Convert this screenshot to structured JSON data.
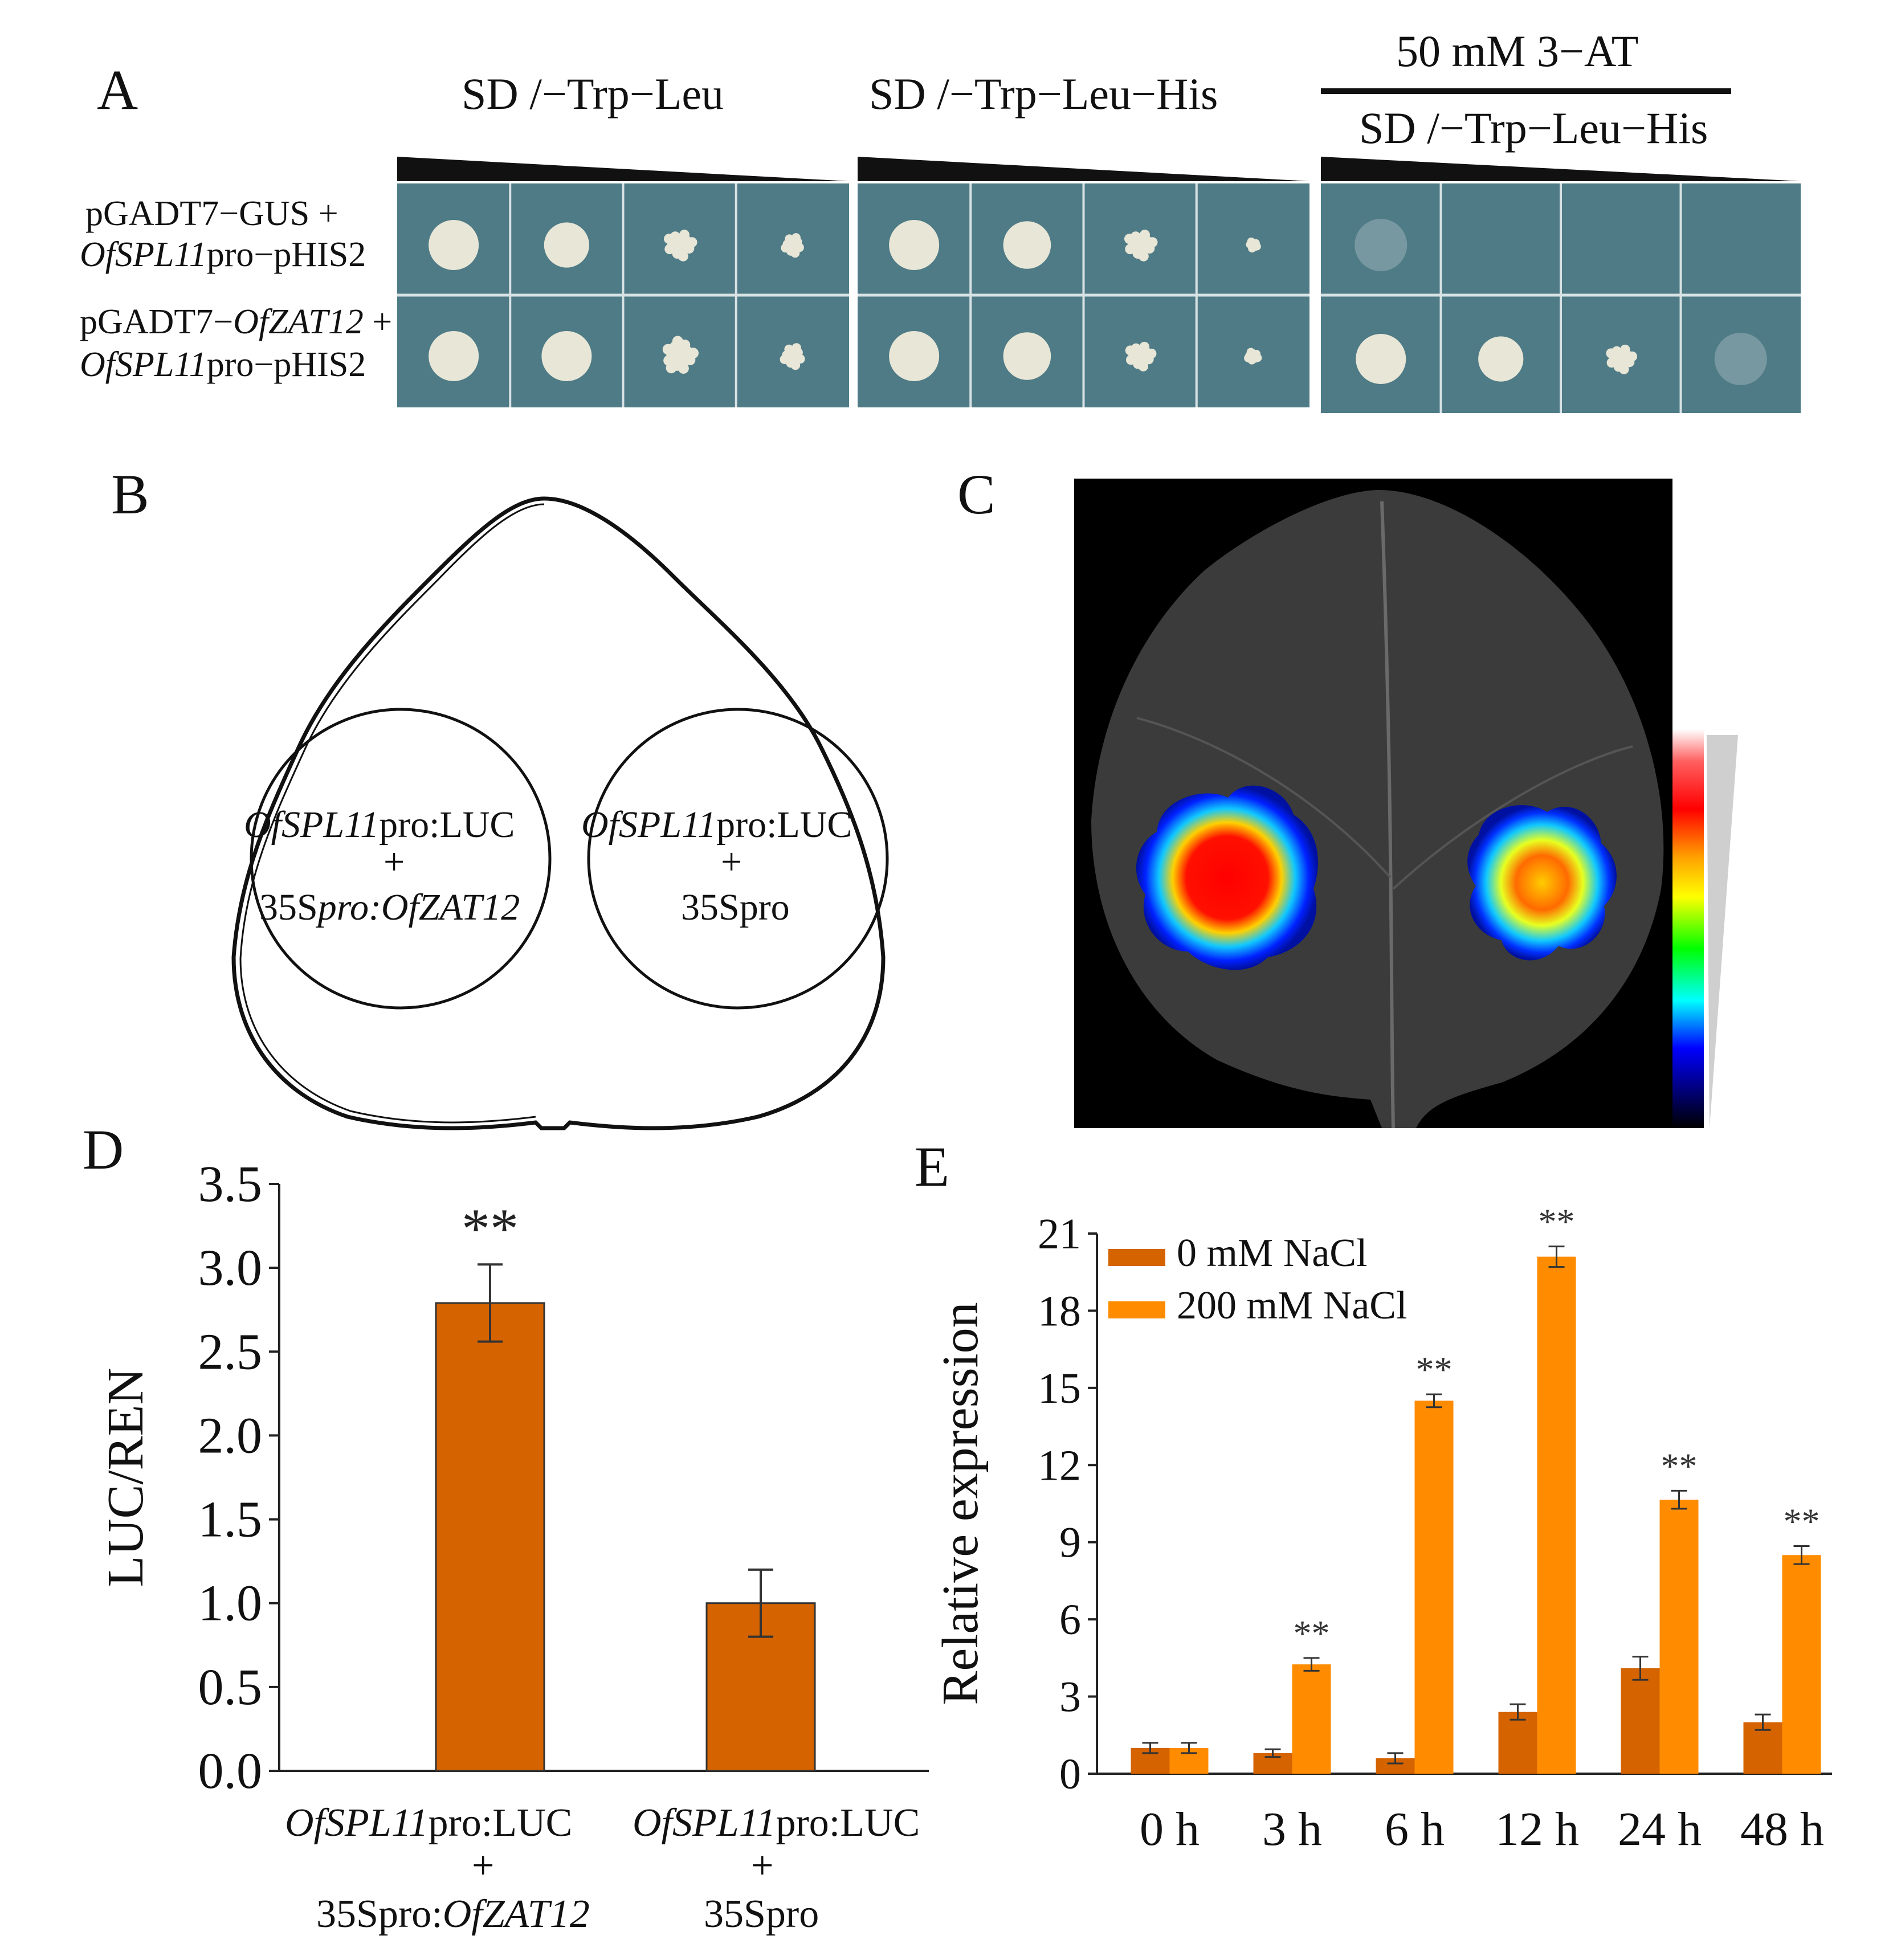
{
  "figure": {
    "panels": {
      "A": {
        "letter": "A",
        "media_headers": [
          "SD /−Trp−Leu",
          "SD /−Trp−Leu−His"
        ],
        "treatment_top": "50 mM 3−AT",
        "treatment_bottom": "SD /−Trp−Leu−His",
        "rows": [
          {
            "line1": "pGADT7−GUS +",
            "line2_italic": "OfSPL11",
            "line2_rest": "pro−pHIS2"
          },
          {
            "line1_pre": "pGADT7−",
            "line1_italic": "OfZAT12",
            "line1_post": " +",
            "line2_italic": "OfSPL11",
            "line2_rest": "pro−pHIS2"
          }
        ],
        "growth_scores": [
          [
            [
              1.0,
              0.9,
              0.6,
              0.4
            ],
            [
              1.0,
              0.95,
              0.6,
              0.2
            ],
            [
              0.15,
              0,
              0,
              0
            ]
          ],
          [
            [
              1.0,
              1.0,
              0.7,
              0.45
            ],
            [
              1.0,
              0.95,
              0.55,
              0.25
            ],
            [
              1.0,
              0.9,
              0.55,
              0.15
            ]
          ]
        ],
        "colors": {
          "plate": "#4e7b86",
          "colony": "#e8e6d6"
        }
      },
      "B": {
        "letter": "B",
        "left_circle": {
          "it": "OfSPL11",
          "rest": "pro:LUC",
          "plus": "+",
          "l3a": "35S",
          "l3b": "pro:OfZAT12"
        },
        "right_circle": {
          "it": "OfSPL11",
          "rest": "pro:LUC",
          "plus": "+",
          "l3": "35Spro"
        }
      },
      "C": {
        "letter": "C"
      },
      "D": {
        "letter": "D"
      },
      "E": {
        "letter": "E"
      }
    }
  },
  "chart_data": [
    {
      "panel": "D",
      "type": "bar",
      "categories": [
        "OfSPL11pro:LUC + 35Spro:OfZAT12",
        "OfSPL11pro:LUC + 35Spro"
      ],
      "values": [
        2.79,
        1.0
      ],
      "errors": [
        0.23,
        0.2
      ],
      "significance": [
        "**",
        ""
      ],
      "ylabel": "LUC/REN",
      "ylim": [
        0,
        3.5
      ],
      "yticks": [
        "0.0",
        "0.5",
        "1.0",
        "1.5",
        "2.0",
        "2.5",
        "3.0",
        "3.5"
      ],
      "xlabels": [
        {
          "a_it": "OfSPL11",
          "a_rest": "pro:LUC",
          "plus": "+",
          "b_pre": "35Spro:",
          "b_it": "OfZAT12"
        },
        {
          "a_it": "OfSPL11",
          "a_rest": "pro:LUC",
          "plus": "+",
          "b_pre": "35Spro",
          "b_it": ""
        }
      ],
      "color": "#d46300"
    },
    {
      "panel": "E",
      "type": "bar",
      "categories": [
        "0 h",
        "3 h",
        "6 h",
        "12 h",
        "24 h",
        "48 h"
      ],
      "series": [
        {
          "name": "0 mM NaCl",
          "values": [
            1.0,
            0.8,
            0.6,
            2.4,
            4.1,
            2.0
          ],
          "errors": [
            0.2,
            0.15,
            0.2,
            0.3,
            0.45,
            0.3
          ],
          "color": "#d46300"
        },
        {
          "name": "200 mM NaCl",
          "values": [
            1.0,
            4.25,
            14.5,
            20.1,
            10.65,
            8.5
          ],
          "errors": [
            0.2,
            0.25,
            0.25,
            0.4,
            0.35,
            0.35
          ],
          "color": "#ff8c00"
        }
      ],
      "significance": [
        "",
        "**",
        "**",
        "**",
        "**",
        "**"
      ],
      "ylabel": "Relative expression",
      "ylim": [
        0,
        21
      ],
      "yticks": [
        "0",
        "3",
        "6",
        "9",
        "12",
        "15",
        "18",
        "21"
      ],
      "legend_position": "top-left"
    }
  ]
}
